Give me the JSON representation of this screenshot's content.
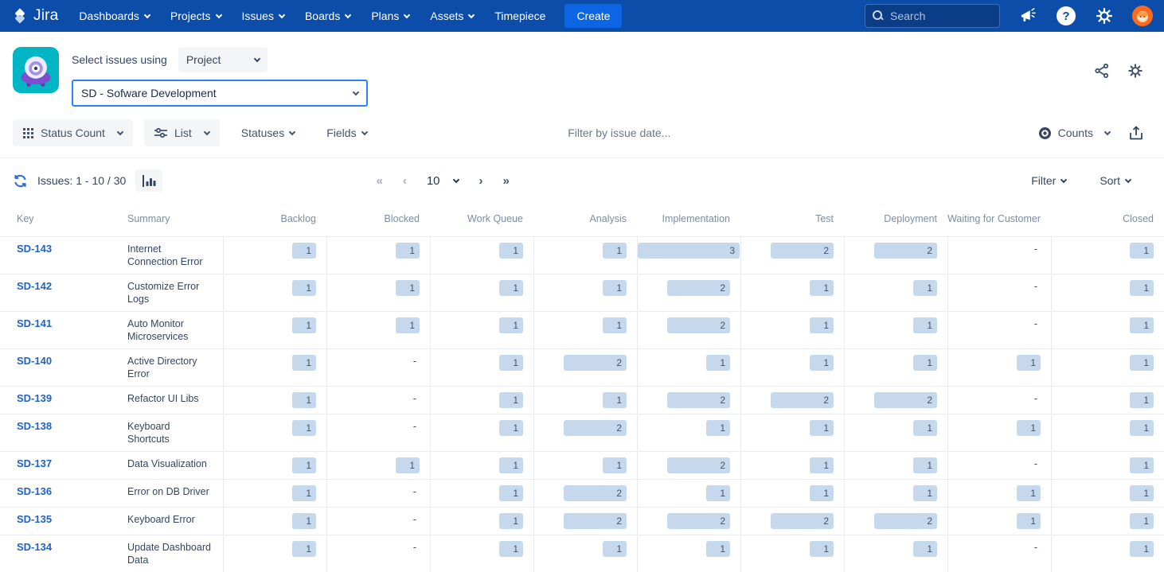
{
  "navbar": {
    "logo_text": "Jira",
    "menus": [
      {
        "label": "Dashboards",
        "chevron": true
      },
      {
        "label": "Projects",
        "chevron": true
      },
      {
        "label": "Issues",
        "chevron": true
      },
      {
        "label": "Boards",
        "chevron": true
      },
      {
        "label": "Plans",
        "chevron": true
      },
      {
        "label": "Assets",
        "chevron": true
      },
      {
        "label": "Timepiece",
        "chevron": false
      }
    ],
    "create_label": "Create",
    "search_placeholder": "Search",
    "help_glyph": "?"
  },
  "header": {
    "select_issues_label": "Select issues using",
    "mode_value": "Project",
    "project_value": "SD - Sofware Development"
  },
  "toolbar": {
    "view_mode_label": "Status Count",
    "layout_label": "List",
    "statuses_label": "Statuses",
    "fields_label": "Fields",
    "date_filter_placeholder": "Filter by issue date...",
    "counts_label": "Counts"
  },
  "pagination": {
    "issues_label": "Issues: 1 - 10 / 30",
    "first_glyph": "«",
    "prev_glyph": "‹",
    "page_size": "10",
    "next_glyph": "›",
    "last_glyph": "»",
    "filter_label": "Filter",
    "sort_label": "Sort"
  },
  "table": {
    "columns": [
      "Key",
      "Summary",
      "Backlog",
      "Blocked",
      "Work Queue",
      "Analysis",
      "Implementation",
      "Test",
      "Deployment",
      "Waiting for Customer",
      "Closed"
    ],
    "rows": [
      {
        "key": "SD-143",
        "summary": "Internet Connection Error",
        "counts": [
          1,
          1,
          1,
          1,
          3,
          2,
          2,
          "-",
          1
        ]
      },
      {
        "key": "SD-142",
        "summary": "Customize Error Logs",
        "counts": [
          1,
          1,
          1,
          1,
          2,
          1,
          1,
          "-",
          1
        ]
      },
      {
        "key": "SD-141",
        "summary": "Auto Monitor Microservices",
        "counts": [
          1,
          1,
          1,
          1,
          2,
          1,
          1,
          "-",
          1
        ]
      },
      {
        "key": "SD-140",
        "summary": "Active Directory Error",
        "counts": [
          1,
          "-",
          1,
          2,
          1,
          1,
          1,
          1,
          1
        ]
      },
      {
        "key": "SD-139",
        "summary": "Refactor UI Libs",
        "counts": [
          1,
          "-",
          1,
          1,
          2,
          2,
          2,
          "-",
          1
        ]
      },
      {
        "key": "SD-138",
        "summary": "Keyboard Shortcuts",
        "counts": [
          1,
          "-",
          1,
          2,
          1,
          1,
          1,
          1,
          1
        ]
      },
      {
        "key": "SD-137",
        "summary": "Data Visualization",
        "counts": [
          1,
          1,
          1,
          1,
          2,
          1,
          1,
          "-",
          1
        ]
      },
      {
        "key": "SD-136",
        "summary": "Error on DB Driver",
        "counts": [
          1,
          "-",
          1,
          2,
          1,
          1,
          1,
          1,
          1
        ]
      },
      {
        "key": "SD-135",
        "summary": "Keyboard Error",
        "counts": [
          1,
          "-",
          1,
          2,
          2,
          2,
          2,
          1,
          1
        ]
      },
      {
        "key": "SD-134",
        "summary": "Update Dashboard Data",
        "counts": [
          1,
          "-",
          1,
          1,
          1,
          1,
          1,
          "-",
          1
        ]
      }
    ]
  },
  "colors": {
    "navbar_bg": "#0B4DA8",
    "create_btn": "#0C66E4",
    "badge_bg": "#C5D8EC",
    "key_link": "#1E63C0",
    "focus_border": "#2684FF",
    "app_icon_bg": "#00B5C4",
    "avatar_bg": "#FF6B1A"
  }
}
